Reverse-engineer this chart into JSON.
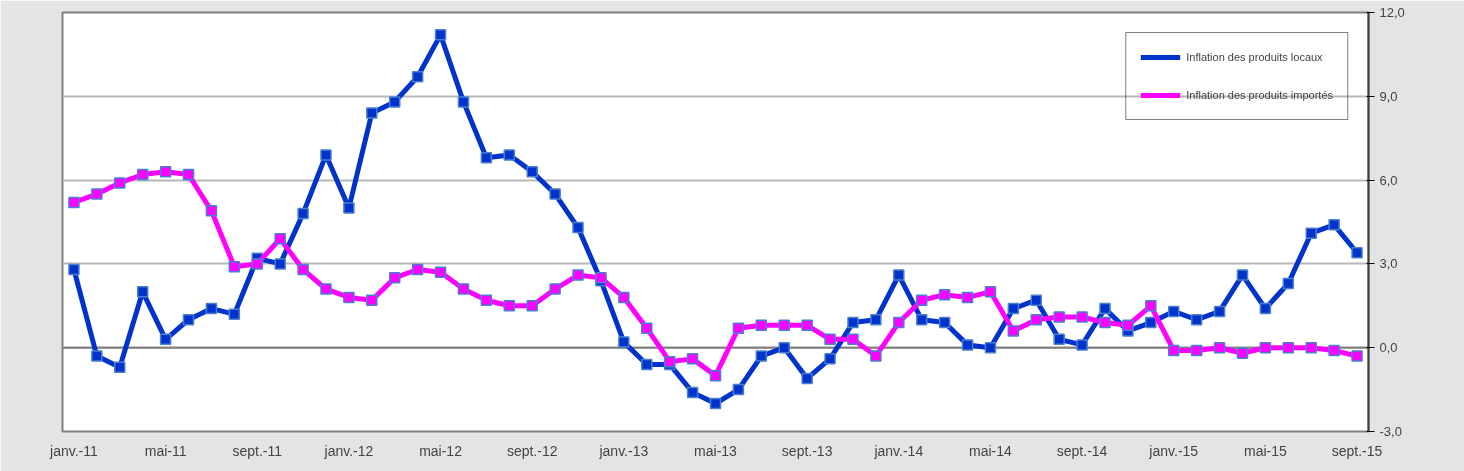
{
  "chart_data": {
    "type": "line",
    "categories": [
      "janv.-11",
      null,
      null,
      null,
      "mai-11",
      null,
      null,
      null,
      "sept.-11",
      null,
      null,
      null,
      "janv.-12",
      null,
      null,
      null,
      "mai-12",
      null,
      null,
      null,
      "sept.-12",
      null,
      null,
      null,
      "janv.-13",
      null,
      null,
      null,
      "mai-13",
      null,
      null,
      null,
      "sept.-13",
      null,
      null,
      null,
      "janv.-14",
      null,
      null,
      null,
      "mai-14",
      null,
      null,
      null,
      "sept.-14",
      null,
      null,
      null,
      "janv.-15",
      null,
      null,
      null,
      "mai-15",
      null,
      null,
      null,
      "sept.-15"
    ],
    "series": [
      {
        "name": "Inflation des produits locaux",
        "color": "#0033cc",
        "values": [
          2.8,
          -0.3,
          -0.7,
          2.0,
          0.3,
          1.0,
          1.4,
          1.2,
          3.2,
          3.0,
          4.8,
          6.9,
          5.0,
          8.4,
          8.8,
          9.7,
          11.2,
          8.8,
          6.8,
          6.9,
          6.3,
          5.5,
          4.3,
          2.4,
          0.2,
          -0.6,
          -0.6,
          -1.6,
          -2.0,
          -1.5,
          -0.3,
          0.0,
          -1.1,
          -0.4,
          0.9,
          1.0,
          2.6,
          1.0,
          0.9,
          0.1,
          0.0,
          1.4,
          1.7,
          0.3,
          0.1,
          1.4,
          0.6,
          0.9,
          1.3,
          1.0,
          1.3,
          2.6,
          1.4,
          2.3,
          4.1,
          4.4,
          3.4
        ]
      },
      {
        "name": "Inflation des produits importés",
        "color": "#ff00ff",
        "values": [
          5.2,
          5.5,
          5.9,
          6.2,
          6.3,
          6.2,
          4.9,
          2.9,
          3.0,
          3.9,
          2.8,
          2.1,
          1.8,
          1.7,
          2.5,
          2.8,
          2.7,
          2.1,
          1.7,
          1.5,
          1.5,
          2.1,
          2.6,
          2.5,
          1.8,
          0.7,
          -0.5,
          -0.4,
          -1.0,
          0.7,
          0.8,
          0.8,
          0.8,
          0.3,
          0.3,
          -0.3,
          0.9,
          1.7,
          1.9,
          1.8,
          2.0,
          0.6,
          1.0,
          1.1,
          1.1,
          0.9,
          0.8,
          1.5,
          -0.1,
          -0.1,
          0.0,
          -0.2,
          0.0,
          0.0,
          0.0,
          -0.1,
          -0.3
        ]
      }
    ],
    "ylim": [
      -3,
      12
    ],
    "yticks": [
      {
        "value": -3,
        "label": "-3,0"
      },
      {
        "value": 0,
        "label": "0,0"
      },
      {
        "value": 3,
        "label": "3,0"
      },
      {
        "value": 6,
        "label": "6,0"
      },
      {
        "value": 9,
        "label": "9,0"
      },
      {
        "value": 12,
        "label": "12,0"
      }
    ],
    "grid": "y",
    "legend": "top right",
    "marker": "square",
    "line_style": "solid"
  }
}
